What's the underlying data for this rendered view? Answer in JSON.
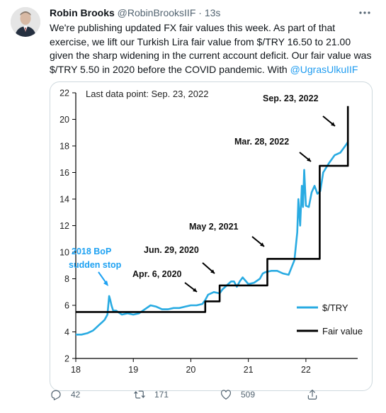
{
  "tweet": {
    "author_name": "Robin Brooks",
    "handle": "@RobinBrooksIIF",
    "separator": "·",
    "time": "13s",
    "text_before": "We're publishing updated FX fair values this week. As part of that exercise, we lift our Turkish Lira fair value from $/TRY 16.50 to 21.00 given the sharp widening in the current account deficit. Our fair value was $/TRY 5.50 in 2020 before the COVID pandemic. With ",
    "mention": "@UgrasUlkuIIF",
    "actions": {
      "reply_count": "42",
      "retweet_count": "171",
      "like_count": "509"
    },
    "icons": [
      "avatar",
      "more-icon",
      "reply-icon",
      "retweet-icon",
      "like-icon",
      "share-icon"
    ]
  },
  "chart_data": {
    "type": "line",
    "note_label": "Last data point: Sep. 23, 2022",
    "x_tick_labels": [
      "18",
      "19",
      "20",
      "21",
      "22"
    ],
    "y_tick_labels": [
      "2",
      "4",
      "6",
      "8",
      "10",
      "12",
      "14",
      "16",
      "18",
      "20",
      "22"
    ],
    "xlim": [
      2018,
      2022.9
    ],
    "ylim": [
      2,
      22
    ],
    "grid": false,
    "legend_position": "bottom-right",
    "colors": {
      "usdtry": "#29abe2",
      "fair_value": "#000000",
      "event_label": "#1da1f2"
    },
    "series": [
      {
        "name": "$/TRY",
        "x": [
          2018.0,
          2018.1,
          2018.2,
          2018.3,
          2018.35,
          2018.4,
          2018.45,
          2018.5,
          2018.55,
          2018.58,
          2018.6,
          2018.62,
          2018.65,
          2018.7,
          2018.8,
          2018.9,
          2019.0,
          2019.1,
          2019.2,
          2019.3,
          2019.4,
          2019.5,
          2019.6,
          2019.7,
          2019.8,
          2019.9,
          2020.0,
          2020.1,
          2020.2,
          2020.25,
          2020.3,
          2020.4,
          2020.5,
          2020.55,
          2020.6,
          2020.65,
          2020.7,
          2020.75,
          2020.8,
          2020.85,
          2020.9,
          2021.0,
          2021.1,
          2021.2,
          2021.25,
          2021.3,
          2021.4,
          2021.5,
          2021.6,
          2021.7,
          2021.8,
          2021.85,
          2021.87,
          2021.9,
          2021.93,
          2021.95,
          2021.97,
          2022.0,
          2022.05,
          2022.1,
          2022.15,
          2022.2,
          2022.25,
          2022.3,
          2022.4,
          2022.5,
          2022.6,
          2022.7,
          2022.73
        ],
        "y": [
          3.8,
          3.8,
          3.9,
          4.1,
          4.3,
          4.5,
          4.7,
          4.9,
          5.3,
          6.7,
          6.4,
          6.0,
          5.6,
          5.6,
          5.3,
          5.4,
          5.3,
          5.4,
          5.7,
          6.0,
          5.9,
          5.7,
          5.7,
          5.8,
          5.8,
          5.9,
          6.0,
          6.0,
          6.1,
          6.4,
          6.8,
          7.0,
          6.9,
          7.2,
          7.4,
          7.6,
          7.8,
          7.8,
          7.4,
          7.8,
          8.1,
          7.6,
          7.7,
          8.0,
          8.4,
          8.5,
          8.6,
          8.6,
          8.4,
          8.3,
          9.4,
          11.5,
          14.0,
          12.0,
          15.0,
          13.4,
          16.2,
          13.5,
          13.4,
          14.5,
          15.0,
          14.4,
          14.6,
          16.0,
          16.7,
          17.3,
          17.5,
          18.1,
          18.3
        ]
      },
      {
        "name": "Fair value",
        "x": [
          2018.0,
          2020.25,
          2020.25,
          2020.5,
          2020.5,
          2021.33,
          2021.33,
          2022.24,
          2022.24,
          2022.73,
          2022.73
        ],
        "y": [
          5.5,
          5.5,
          6.3,
          6.3,
          7.5,
          7.5,
          9.5,
          9.5,
          16.5,
          16.5,
          21.0
        ]
      }
    ],
    "annotations": [
      {
        "text": "Sep. 23, 2022",
        "color": "black"
      },
      {
        "text": "Mar. 28, 2022",
        "color": "black"
      },
      {
        "text": "May 2, 2021",
        "color": "black"
      },
      {
        "text": "Jun. 29, 2020",
        "color": "black"
      },
      {
        "text": "Apr. 6, 2020",
        "color": "black"
      },
      {
        "text": "2018 BoP",
        "color": "blue"
      },
      {
        "text": "sudden stop",
        "color": "blue"
      }
    ]
  }
}
